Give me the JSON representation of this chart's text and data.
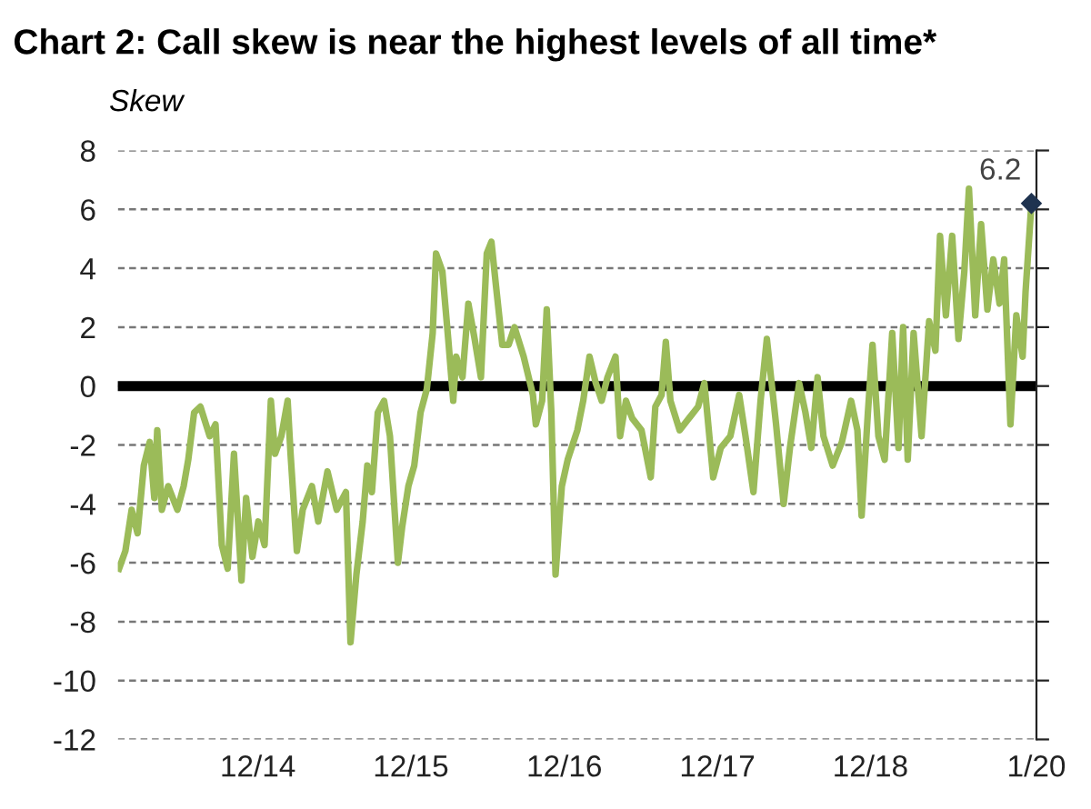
{
  "chart_data": {
    "type": "line",
    "title": "Chart 2: Call skew is near the highest levels of all time*",
    "ylabel": "Skew",
    "x": [
      "2014-01-04",
      "2014-01-19",
      "2014-02-03",
      "2014-02-17",
      "2014-03-04",
      "2014-03-18",
      "2014-03-29",
      "2014-04-05",
      "2014-04-16",
      "2014-05-01",
      "2014-05-23",
      "2014-06-07",
      "2014-06-18",
      "2014-07-02",
      "2014-07-17",
      "2014-08-08",
      "2014-08-22",
      "2014-09-06",
      "2014-09-20",
      "2014-10-05",
      "2014-10-23",
      "2014-11-03",
      "2014-11-18",
      "2014-12-02",
      "2014-12-17",
      "2015-01-01",
      "2015-01-11",
      "2015-01-26",
      "2015-02-10",
      "2015-02-17",
      "2015-03-04",
      "2015-03-18",
      "2015-04-09",
      "2015-04-24",
      "2015-05-16",
      "2015-06-07",
      "2015-06-29",
      "2015-07-10",
      "2015-07-24",
      "2015-08-08",
      "2015-08-19",
      "2015-08-30",
      "2015-09-13",
      "2015-09-28",
      "2015-10-12",
      "2015-10-23",
      "2015-10-31",
      "2015-11-10",
      "2015-11-25",
      "2015-12-09",
      "2015-12-24",
      "2016-01-08",
      "2016-01-22",
      "2016-01-30",
      "2016-02-14",
      "2016-02-28",
      "2016-03-11",
      "2016-03-18",
      "2016-04-02",
      "2016-04-16",
      "2016-05-01",
      "2016-05-16",
      "2016-05-30",
      "2016-06-10",
      "2016-06-21",
      "2016-07-06",
      "2016-07-21",
      "2016-08-04",
      "2016-08-26",
      "2016-09-17",
      "2016-09-24",
      "2016-10-09",
      "2016-10-20",
      "2016-10-31",
      "2016-11-10",
      "2016-11-25",
      "2016-12-09",
      "2017-01-01",
      "2017-01-15",
      "2017-01-30",
      "2017-02-14",
      "2017-02-28",
      "2017-03-14",
      "2017-04-02",
      "2017-04-13",
      "2017-04-27",
      "2017-05-12",
      "2017-06-03",
      "2017-06-25",
      "2017-07-06",
      "2017-07-21",
      "2017-07-31",
      "2017-08-11",
      "2017-09-02",
      "2017-09-24",
      "2017-10-16",
      "2017-10-31",
      "2017-11-21",
      "2017-12-09",
      "2018-01-01",
      "2018-01-22",
      "2018-02-06",
      "2018-02-25",
      "2018-03-14",
      "2018-03-29",
      "2018-04-20",
      "2018-05-08",
      "2018-05-23",
      "2018-06-14",
      "2018-06-29",
      "2018-07-13",
      "2018-07-28",
      "2018-08-11",
      "2018-09-02",
      "2018-09-24",
      "2018-10-16",
      "2018-10-31",
      "2018-11-10",
      "2018-11-25",
      "2018-12-06",
      "2018-12-20",
      "2019-01-04",
      "2019-01-22",
      "2019-02-06",
      "2019-02-17",
      "2019-02-28",
      "2019-03-14",
      "2019-04-02",
      "2019-04-20",
      "2019-05-05",
      "2019-05-16",
      "2019-05-30",
      "2019-06-14",
      "2019-06-29",
      "2019-07-13",
      "2019-07-24",
      "2019-08-08",
      "2019-08-22",
      "2019-09-06",
      "2019-09-20",
      "2019-10-05",
      "2019-10-16",
      "2019-10-31",
      "2019-11-14",
      "2019-11-29",
      "2019-12-06",
      "2019-12-20"
    ],
    "series": [
      {
        "color": "#9bbb59",
        "values": [
          -6.2,
          -5.6,
          -4.2,
          -5.0,
          -2.7,
          -1.9,
          -3.8,
          -1.5,
          -4.2,
          -3.4,
          -4.2,
          -3.4,
          -2.5,
          -0.9,
          -0.7,
          -1.7,
          -1.3,
          -5.4,
          -6.2,
          -2.3,
          -6.6,
          -3.8,
          -5.8,
          -4.6,
          -5.4,
          -0.5,
          -2.3,
          -1.7,
          -0.5,
          -2.3,
          -5.6,
          -4.2,
          -3.4,
          -4.6,
          -2.9,
          -4.2,
          -3.6,
          -8.7,
          -6.4,
          -4.6,
          -2.7,
          -3.6,
          -0.9,
          -0.5,
          -1.7,
          -4.2,
          -6.0,
          -4.8,
          -3.4,
          -2.7,
          -0.9,
          -0.1,
          1.8,
          4.5,
          3.9,
          1.6,
          -0.5,
          1.0,
          0.3,
          2.8,
          1.6,
          0.3,
          4.5,
          4.9,
          3.4,
          1.4,
          1.4,
          2.0,
          1.0,
          -0.3,
          -1.3,
          -0.5,
          2.6,
          -0.9,
          -6.4,
          -3.4,
          -2.5,
          -1.5,
          -0.5,
          1.0,
          0.1,
          -0.5,
          0.3,
          1.0,
          -1.7,
          -0.5,
          -1.1,
          -1.5,
          -3.1,
          -0.7,
          -0.3,
          1.5,
          -0.5,
          -1.5,
          -1.1,
          -0.7,
          0.1,
          -3.1,
          -2.1,
          -1.7,
          -0.3,
          -1.7,
          -3.6,
          -0.5,
          1.6,
          -1.3,
          -4.0,
          -2.1,
          0.1,
          -0.9,
          -2.1,
          0.3,
          -1.7,
          -2.7,
          -1.9,
          -0.5,
          -1.5,
          -4.4,
          -0.9,
          1.4,
          -1.7,
          -2.5,
          1.8,
          -2.1,
          2.0,
          -2.5,
          1.8,
          -1.7,
          2.2,
          1.2,
          5.1,
          2.4,
          5.1,
          1.6,
          3.9,
          6.7,
          2.4,
          5.5,
          2.6,
          4.3,
          2.8,
          4.3,
          -1.3,
          2.4,
          1.0,
          3.2,
          6.2
        ]
      }
    ],
    "xlim": [
      "2014-01-01",
      "2020-01-01"
    ],
    "xticks": [
      {
        "value": "2014-12-01",
        "label": "12/14"
      },
      {
        "value": "2015-12-01",
        "label": "12/15"
      },
      {
        "value": "2016-12-01",
        "label": "12/16"
      },
      {
        "value": "2017-12-01",
        "label": "12/17"
      },
      {
        "value": "2018-12-01",
        "label": "12/18"
      },
      {
        "value": "2020-01-01",
        "label": "1/20"
      }
    ],
    "ylim": [
      -12,
      8
    ],
    "yticks": [
      -12,
      -10,
      -8,
      -6,
      -4,
      -2,
      0,
      2,
      4,
      6,
      8
    ],
    "grid": "y",
    "marker": "none",
    "line_style": "solid",
    "legend": false,
    "ref_lines": [
      {
        "axis": "y",
        "value": 0,
        "color": "#000000"
      }
    ],
    "annotations": [
      {
        "text": "6.2",
        "x": "2019-12-20",
        "y": 6.2
      }
    ]
  }
}
